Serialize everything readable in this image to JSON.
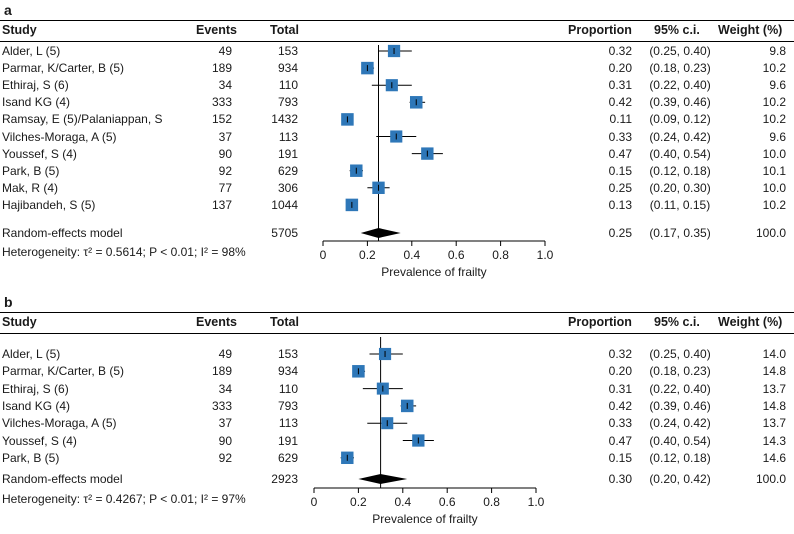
{
  "colors": {
    "box": "#2e77b8",
    "line": "#000000",
    "text": "#1a1a1a"
  },
  "headers": {
    "study": "Study",
    "events": "Events",
    "total": "Total",
    "proportion": "Proportion",
    "ci": "95% c.i.",
    "weight": "Weight (%)"
  },
  "panels": [
    {
      "label": "a",
      "rows": [
        {
          "study": "Alder, L (5)",
          "events": "49",
          "total": "153",
          "proportion": "0.32",
          "ci": "(0.25, 0.40)",
          "weight": "9.8"
        },
        {
          "study": "Parmar, K/Carter, B (5)",
          "events": "189",
          "total": "934",
          "proportion": "0.20",
          "ci": "(0.18, 0.23)",
          "weight": "10.2"
        },
        {
          "study": "Ethiraj, S (6)",
          "events": "34",
          "total": "110",
          "proportion": "0.31",
          "ci": "(0.22, 0.40)",
          "weight": "9.6"
        },
        {
          "study": "Isand KG (4)",
          "events": "333",
          "total": "793",
          "proportion": "0.42",
          "ci": "(0.39, 0.46)",
          "weight": "10.2"
        },
        {
          "study": "Ramsay, E (5)/Palaniappan, S",
          "events": "152",
          "total": "1432",
          "proportion": "0.11",
          "ci": "(0.09, 0.12)",
          "weight": "10.2"
        },
        {
          "study": "Vilches-Moraga, A (5)",
          "events": "37",
          "total": "113",
          "proportion": "0.33",
          "ci": "(0.24, 0.42)",
          "weight": "9.6"
        },
        {
          "study": "Youssef, S (4)",
          "events": "90",
          "total": "191",
          "proportion": "0.47",
          "ci": "(0.40, 0.54)",
          "weight": "10.0"
        },
        {
          "study": "Park, B (5)",
          "events": "92",
          "total": "629",
          "proportion": "0.15",
          "ci": "(0.12, 0.18)",
          "weight": "10.1"
        },
        {
          "study": "Mak, R (4)",
          "events": "77",
          "total": "306",
          "proportion": "0.25",
          "ci": "(0.20, 0.30)",
          "weight": "10.0"
        },
        {
          "study": "Hajibandeh, S (5)",
          "events": "137",
          "total": "1044",
          "proportion": "0.13",
          "ci": "(0.11, 0.15)",
          "weight": "10.2"
        }
      ],
      "summary": {
        "study": "Random-effects model",
        "total": "5705",
        "proportion": "0.25",
        "ci": "(0.17, 0.35)",
        "weight": "100.0"
      },
      "heterogeneity": "Heterogeneity: τ² = 0.5614; P < 0.01; I² = 98%"
    },
    {
      "label": "b",
      "rows": [
        {
          "study": "Alder, L (5)",
          "events": "49",
          "total": "153",
          "proportion": "0.32",
          "ci": "(0.25, 0.40)",
          "weight": "14.0"
        },
        {
          "study": "Parmar, K/Carter, B (5)",
          "events": "189",
          "total": "934",
          "proportion": "0.20",
          "ci": "(0.18, 0.23)",
          "weight": "14.8"
        },
        {
          "study": "Ethiraj, S (6)",
          "events": "34",
          "total": "110",
          "proportion": "0.31",
          "ci": "(0.22, 0.40)",
          "weight": "13.7"
        },
        {
          "study": "Isand KG (4)",
          "events": "333",
          "total": "793",
          "proportion": "0.42",
          "ci": "(0.39, 0.46)",
          "weight": "14.8"
        },
        {
          "study": "Vilches-Moraga, A (5)",
          "events": "37",
          "total": "113",
          "proportion": "0.33",
          "ci": "(0.24, 0.42)",
          "weight": "13.7"
        },
        {
          "study": "Youssef, S (4)",
          "events": "90",
          "total": "191",
          "proportion": "0.47",
          "ci": "(0.40, 0.54)",
          "weight": "14.3"
        },
        {
          "study": "Park, B (5)",
          "events": "92",
          "total": "629",
          "proportion": "0.15",
          "ci": "(0.12, 0.18)",
          "weight": "14.6"
        }
      ],
      "summary": {
        "study": "Random-effects model",
        "total": "2923",
        "proportion": "0.30",
        "ci": "(0.20, 0.42)",
        "weight": "100.0"
      },
      "heterogeneity": "Heterogeneity: τ² = 0.4267; P < 0.01; I² = 97%"
    }
  ],
  "chart_data": [
    {
      "type": "forest",
      "panel": "a",
      "xlabel": "Prevalence of frailty",
      "xlim": [
        0,
        1
      ],
      "xticks": [
        "0",
        "0.2",
        "0.4",
        "0.6",
        "0.8",
        "1.0"
      ],
      "reference_line": 0.25,
      "estimates": [
        0.32,
        0.2,
        0.31,
        0.42,
        0.11,
        0.33,
        0.47,
        0.15,
        0.25,
        0.13
      ],
      "lower": [
        0.25,
        0.18,
        0.22,
        0.39,
        0.09,
        0.24,
        0.4,
        0.12,
        0.2,
        0.11
      ],
      "upper": [
        0.4,
        0.23,
        0.4,
        0.46,
        0.12,
        0.42,
        0.54,
        0.18,
        0.3,
        0.15
      ],
      "weights": [
        9.8,
        10.2,
        9.6,
        10.2,
        10.2,
        9.6,
        10.0,
        10.1,
        10.0,
        10.2
      ],
      "summary": {
        "estimate": 0.25,
        "lower": 0.17,
        "upper": 0.35
      }
    },
    {
      "type": "forest",
      "panel": "b",
      "xlabel": "Prevalence of frailty",
      "xlim": [
        0,
        1
      ],
      "xticks": [
        "0",
        "0.2",
        "0.4",
        "0.6",
        "0.8",
        "1.0"
      ],
      "reference_line": 0.3,
      "estimates": [
        0.32,
        0.2,
        0.31,
        0.42,
        0.33,
        0.47,
        0.15
      ],
      "lower": [
        0.25,
        0.18,
        0.22,
        0.39,
        0.24,
        0.4,
        0.12
      ],
      "upper": [
        0.4,
        0.23,
        0.4,
        0.46,
        0.42,
        0.54,
        0.18
      ],
      "weights": [
        14.0,
        14.8,
        13.7,
        14.8,
        13.7,
        14.3,
        14.6
      ],
      "summary": {
        "estimate": 0.3,
        "lower": 0.2,
        "upper": 0.42
      }
    }
  ]
}
